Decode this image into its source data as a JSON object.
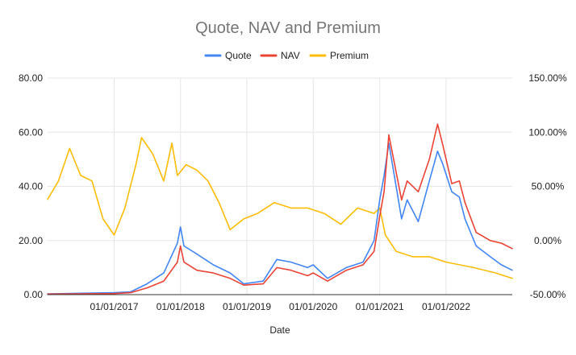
{
  "chart_data": {
    "type": "line",
    "title": "Quote, NAV and Premium",
    "xlabel": "Date",
    "ylabel_left": "",
    "ylabel_right": "",
    "x_range": [
      "2016-01-01",
      "2022-12-31"
    ],
    "x_ticks": [
      "01/01/2017",
      "01/01/2018",
      "01/01/2019",
      "01/01/2020",
      "01/01/2021",
      "01/01/2022"
    ],
    "x_tick_dates": [
      "2017-01-01",
      "2018-01-01",
      "2019-01-01",
      "2020-01-01",
      "2021-01-01",
      "2022-01-01"
    ],
    "y_left": {
      "range": [
        0,
        80
      ],
      "ticks": [
        "0.00",
        "20.00",
        "40.00",
        "60.00",
        "80.00"
      ],
      "tick_values": [
        0,
        20,
        40,
        60,
        80
      ]
    },
    "y_right": {
      "range": [
        -50,
        150
      ],
      "ticks": [
        "-50.00%",
        "0.00%",
        "50.00%",
        "100.00%",
        "150.00%"
      ],
      "tick_values": [
        -50,
        0,
        50,
        100,
        150
      ]
    },
    "grid": true,
    "legend_position": "top",
    "series": [
      {
        "name": "Quote",
        "axis": "left",
        "color": "#4285f4",
        "points": [
          [
            "2016-01-01",
            0.3
          ],
          [
            "2016-07-01",
            0.5
          ],
          [
            "2017-01-01",
            0.7
          ],
          [
            "2017-04-01",
            1.0
          ],
          [
            "2017-07-01",
            4.0
          ],
          [
            "2017-10-01",
            8.0
          ],
          [
            "2017-12-15",
            19.0
          ],
          [
            "2018-01-01",
            25.0
          ],
          [
            "2018-01-20",
            18.0
          ],
          [
            "2018-04-01",
            15.0
          ],
          [
            "2018-07-01",
            11.0
          ],
          [
            "2018-10-01",
            8.0
          ],
          [
            "2018-12-15",
            4.0
          ],
          [
            "2019-04-01",
            5.0
          ],
          [
            "2019-06-15",
            13.0
          ],
          [
            "2019-09-01",
            12.0
          ],
          [
            "2019-12-01",
            10.0
          ],
          [
            "2020-01-01",
            11.0
          ],
          [
            "2020-03-20",
            6.0
          ],
          [
            "2020-07-01",
            10.0
          ],
          [
            "2020-10-01",
            12.0
          ],
          [
            "2020-12-01",
            20.0
          ],
          [
            "2021-01-01",
            35.0
          ],
          [
            "2021-01-25",
            44.0
          ],
          [
            "2021-02-20",
            56.0
          ],
          [
            "2021-05-01",
            28.0
          ],
          [
            "2021-06-01",
            35.0
          ],
          [
            "2021-08-01",
            27.0
          ],
          [
            "2021-10-01",
            42.0
          ],
          [
            "2021-11-15",
            53.0
          ],
          [
            "2021-12-15",
            48.0
          ],
          [
            "2022-02-01",
            38.0
          ],
          [
            "2022-03-15",
            36.0
          ],
          [
            "2022-04-15",
            28.0
          ],
          [
            "2022-06-15",
            18.0
          ],
          [
            "2022-09-01",
            14.0
          ],
          [
            "2022-11-01",
            11.0
          ],
          [
            "2022-12-31",
            9.0
          ]
        ]
      },
      {
        "name": "NAV",
        "axis": "left",
        "color": "#ea4335",
        "points": [
          [
            "2016-01-01",
            0.2
          ],
          [
            "2016-07-01",
            0.3
          ],
          [
            "2017-01-01",
            0.4
          ],
          [
            "2017-04-01",
            0.7
          ],
          [
            "2017-07-01",
            2.5
          ],
          [
            "2017-10-01",
            5.0
          ],
          [
            "2017-12-15",
            12.0
          ],
          [
            "2018-01-01",
            18.0
          ],
          [
            "2018-01-20",
            12.0
          ],
          [
            "2018-04-01",
            9.0
          ],
          [
            "2018-07-01",
            8.0
          ],
          [
            "2018-10-01",
            6.0
          ],
          [
            "2018-12-15",
            3.5
          ],
          [
            "2019-04-01",
            4.0
          ],
          [
            "2019-06-15",
            10.0
          ],
          [
            "2019-09-01",
            9.0
          ],
          [
            "2019-12-01",
            7.0
          ],
          [
            "2020-01-01",
            8.0
          ],
          [
            "2020-03-20",
            5.0
          ],
          [
            "2020-07-01",
            9.0
          ],
          [
            "2020-10-01",
            11.0
          ],
          [
            "2020-12-01",
            16.0
          ],
          [
            "2021-01-01",
            29.0
          ],
          [
            "2021-01-25",
            38.0
          ],
          [
            "2021-02-20",
            59.0
          ],
          [
            "2021-05-01",
            35.0
          ],
          [
            "2021-06-01",
            42.0
          ],
          [
            "2021-08-01",
            38.0
          ],
          [
            "2021-10-01",
            50.0
          ],
          [
            "2021-11-15",
            63.0
          ],
          [
            "2021-12-15",
            55.0
          ],
          [
            "2022-02-01",
            41.0
          ],
          [
            "2022-03-15",
            42.0
          ],
          [
            "2022-04-15",
            34.0
          ],
          [
            "2022-06-15",
            23.0
          ],
          [
            "2022-09-01",
            20.0
          ],
          [
            "2022-11-01",
            19.0
          ],
          [
            "2022-12-31",
            17.0
          ]
        ]
      },
      {
        "name": "Premium",
        "axis": "right",
        "color": "#fbbc04",
        "points": [
          [
            "2016-01-01",
            38.0
          ],
          [
            "2016-03-01",
            55.0
          ],
          [
            "2016-05-01",
            85.0
          ],
          [
            "2016-07-01",
            60.0
          ],
          [
            "2016-09-01",
            55.0
          ],
          [
            "2016-11-01",
            20.0
          ],
          [
            "2017-01-01",
            5.0
          ],
          [
            "2017-03-01",
            30.0
          ],
          [
            "2017-05-01",
            70.0
          ],
          [
            "2017-06-01",
            95.0
          ],
          [
            "2017-08-01",
            80.0
          ],
          [
            "2017-10-01",
            55.0
          ],
          [
            "2017-11-15",
            90.0
          ],
          [
            "2017-12-15",
            60.0
          ],
          [
            "2018-02-01",
            70.0
          ],
          [
            "2018-04-01",
            65.0
          ],
          [
            "2018-06-01",
            55.0
          ],
          [
            "2018-08-01",
            35.0
          ],
          [
            "2018-10-01",
            10.0
          ],
          [
            "2018-12-15",
            20.0
          ],
          [
            "2019-03-01",
            25.0
          ],
          [
            "2019-06-01",
            35.0
          ],
          [
            "2019-09-01",
            30.0
          ],
          [
            "2019-12-01",
            30.0
          ],
          [
            "2020-03-01",
            25.0
          ],
          [
            "2020-06-01",
            15.0
          ],
          [
            "2020-09-01",
            30.0
          ],
          [
            "2020-12-01",
            25.0
          ],
          [
            "2021-01-01",
            30.0
          ],
          [
            "2021-02-01",
            5.0
          ],
          [
            "2021-04-01",
            -10.0
          ],
          [
            "2021-07-01",
            -15.0
          ],
          [
            "2021-10-01",
            -15.0
          ],
          [
            "2022-01-01",
            -20.0
          ],
          [
            "2022-06-01",
            -25.0
          ],
          [
            "2022-10-01",
            -30.0
          ],
          [
            "2022-12-31",
            -35.0
          ]
        ]
      }
    ]
  }
}
